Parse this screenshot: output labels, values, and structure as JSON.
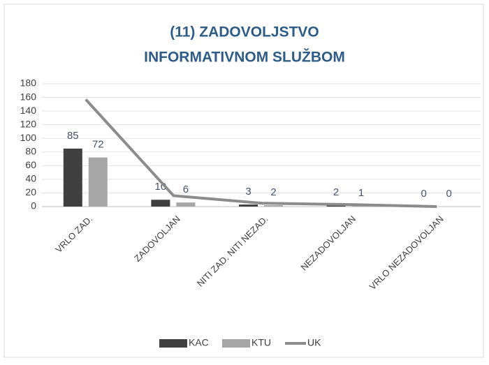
{
  "chart_data": {
    "type": "bar-line",
    "title": [
      "(11) ZADOVOLJSTVO",
      "INFORMATIVNOM SLUŽBOM"
    ],
    "categories": [
      "VRLO ZAD.",
      "ZADOVOLJAN",
      "NITI ZAD. NITI NEZAD.",
      "NEZADOVOLJAN",
      "VRLO NEZADOVOLJAN"
    ],
    "series": [
      {
        "name": "KAC",
        "type": "bar",
        "color": "#404040",
        "values": [
          85,
          10,
          3,
          2,
          0
        ]
      },
      {
        "name": "KTU",
        "type": "bar",
        "color": "#a6a6a6",
        "values": [
          72,
          6,
          2,
          1,
          0
        ]
      },
      {
        "name": "UK",
        "type": "line",
        "color": "#8c8c8c",
        "values": [
          157,
          16,
          5,
          3,
          0
        ]
      }
    ],
    "ylim": [
      0,
      180
    ],
    "yticks": [
      0,
      20,
      40,
      60,
      80,
      100,
      120,
      140,
      160,
      180
    ],
    "grid": true,
    "legend": "bottom"
  }
}
